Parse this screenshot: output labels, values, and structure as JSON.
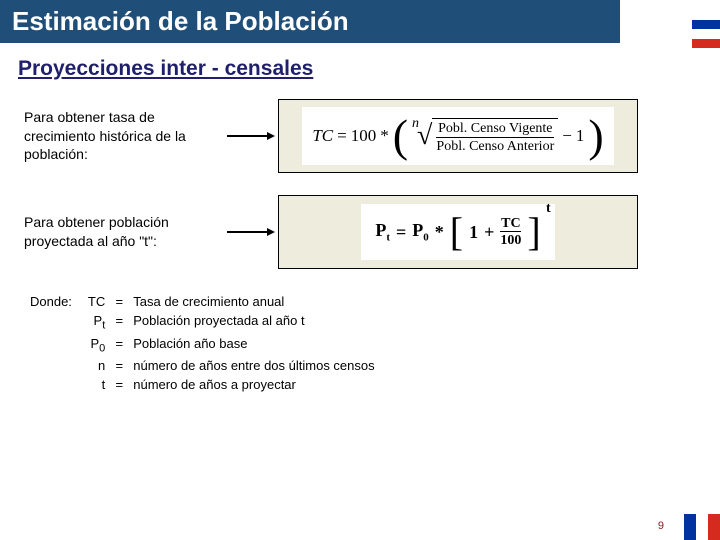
{
  "colors": {
    "title_bar_bg": "#1f4e79",
    "title_text": "#ffffff",
    "subtitle_text": "#1f1f6b",
    "formula_box_bg": "#eeecdd",
    "formula_box_border": "#000000",
    "formula_inner_bg": "#ffffff",
    "body_text": "#000000",
    "page_num_color": "#8a2020",
    "flag_blue": "#0033a0",
    "flag_white": "#ffffff",
    "flag_red": "#d52b1e"
  },
  "title": "Estimación de la Población",
  "subtitle": "Proyecciones inter - censales",
  "row1": {
    "label": "Para obtener tasa de crecimiento histórica de la población:",
    "formula": {
      "lhs": "TC",
      "eq": "=",
      "factor": "100",
      "times": "*",
      "root_index": "n",
      "numerator": "Pobl. Censo Vigente",
      "denominator": "Pobl. Censo Anterior",
      "minus": "−",
      "one": "1"
    }
  },
  "row2": {
    "label": "Para obtener población proyectada al año \"t\":",
    "formula": {
      "lhs_base": "P",
      "lhs_sub": "t",
      "eq": "=",
      "rhs_base": "P",
      "rhs_sub": "0",
      "times": "*",
      "one": "1",
      "plus": "+",
      "frac_num": "TC",
      "frac_den": "100",
      "exp": "t"
    }
  },
  "definitions": {
    "where_label": "Donde:",
    "items": [
      {
        "symbol": "TC",
        "text": "Tasa de crecimiento anual"
      },
      {
        "symbol": "P_t",
        "symbol_display_base": "P",
        "symbol_display_sub": "t",
        "text": "Población proyectada al año t"
      },
      {
        "symbol": "P_0",
        "symbol_display_base": "P",
        "symbol_display_sub": "0",
        "text": "Población año base"
      },
      {
        "symbol": "n",
        "text": "número de años entre dos últimos censos"
      },
      {
        "symbol": "t",
        "text": "número de años a proyectar"
      }
    ]
  },
  "page_number": "9"
}
